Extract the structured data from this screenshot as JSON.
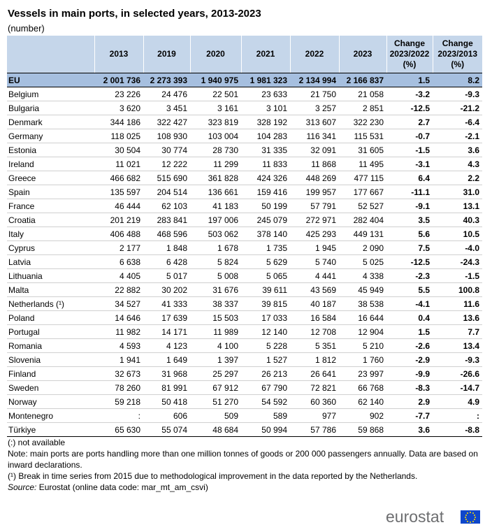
{
  "header": {
    "title": "Vessels in main ports, in selected years, 2013-2023",
    "subtitle": "(number)"
  },
  "table": {
    "columns": [
      "",
      "2013",
      "2019",
      "2020",
      "2021",
      "2022",
      "2023",
      [
        "Change",
        "2023/2022",
        "(%)"
      ],
      [
        "Change",
        "2023/2013",
        "(%)"
      ]
    ],
    "rows": [
      [
        "EU",
        "2 001 736",
        "2 273 393",
        "1 940 975",
        "1 981 323",
        "2 134 994",
        "2 166 837",
        "1.5",
        "8.2"
      ],
      [
        "Belgium",
        "23 226",
        "24 476",
        "22 501",
        "23 633",
        "21 750",
        "21 058",
        "-3.2",
        "-9.3"
      ],
      [
        "Bulgaria",
        "3 620",
        "3 451",
        "3 161",
        "3 101",
        "3 257",
        "2 851",
        "-12.5",
        "-21.2"
      ],
      [
        "Denmark",
        "344 186",
        "322 427",
        "323 819",
        "328 192",
        "313 607",
        "322 230",
        "2.7",
        "-6.4"
      ],
      [
        "Germany",
        "118 025",
        "108 930",
        "103 004",
        "104 283",
        "116 341",
        "115 531",
        "-0.7",
        "-2.1"
      ],
      [
        "Estonia",
        "30 504",
        "30 774",
        "28 730",
        "31 335",
        "32 091",
        "31 605",
        "-1.5",
        "3.6"
      ],
      [
        "Ireland",
        "11 021",
        "12 222",
        "11 299",
        "11 833",
        "11 868",
        "11 495",
        "-3.1",
        "4.3"
      ],
      [
        "Greece",
        "466 682",
        "515 690",
        "361 828",
        "424 326",
        "448 269",
        "477 115",
        "6.4",
        "2.2"
      ],
      [
        "Spain",
        "135 597",
        "204 514",
        "136 661",
        "159 416",
        "199 957",
        "177 667",
        "-11.1",
        "31.0"
      ],
      [
        "France",
        "46 444",
        "62 103",
        "41 183",
        "50 199",
        "57 791",
        "52 527",
        "-9.1",
        "13.1"
      ],
      [
        "Croatia",
        "201 219",
        "283 841",
        "197 006",
        "245 079",
        "272 971",
        "282 404",
        "3.5",
        "40.3"
      ],
      [
        "Italy",
        "406 488",
        "468 596",
        "503 062",
        "378 140",
        "425 293",
        "449 131",
        "5.6",
        "10.5"
      ],
      [
        "Cyprus",
        "2 177",
        "1 848",
        "1 678",
        "1 735",
        "1 945",
        "2 090",
        "7.5",
        "-4.0"
      ],
      [
        "Latvia",
        "6 638",
        "6 428",
        "5 824",
        "5 629",
        "5 740",
        "5 025",
        "-12.5",
        "-24.3"
      ],
      [
        "Lithuania",
        "4 405",
        "5 017",
        "5 008",
        "5 065",
        "4 441",
        "4 338",
        "-2.3",
        "-1.5"
      ],
      [
        "Malta",
        "22 882",
        "30 202",
        "31 676",
        "39 611",
        "43 569",
        "45 949",
        "5.5",
        "100.8"
      ],
      [
        "Netherlands (¹)",
        "34 527",
        "41 333",
        "38 337",
        "39 815",
        "40 187",
        "38 538",
        "-4.1",
        "11.6"
      ],
      [
        "Poland",
        "14 646",
        "17 639",
        "15 503",
        "17 033",
        "16 584",
        "16 644",
        "0.4",
        "13.6"
      ],
      [
        "Portugal",
        "11 982",
        "14 171",
        "11 989",
        "12 140",
        "12 708",
        "12 904",
        "1.5",
        "7.7"
      ],
      [
        "Romania",
        "4 593",
        "4 123",
        "4 100",
        "5 228",
        "5 351",
        "5 210",
        "-2.6",
        "13.4"
      ],
      [
        "Slovenia",
        "1 941",
        "1 649",
        "1 397",
        "1 527",
        "1 812",
        "1 760",
        "-2.9",
        "-9.3"
      ],
      [
        "Finland",
        "32 673",
        "31 968",
        "25 297",
        "26 213",
        "26 641",
        "23 997",
        "-9.9",
        "-26.6"
      ],
      [
        "Sweden",
        "78 260",
        "81 991",
        "67 912",
        "67 790",
        "72 821",
        "66 768",
        "-8.3",
        "-14.7"
      ],
      [
        "Norway",
        "59 218",
        "50 418",
        "51 270",
        "54 592",
        "60 360",
        "62 140",
        "2.9",
        "4.9"
      ],
      [
        "Montenegro",
        ":",
        "606",
        "509",
        "589",
        "977",
        "902",
        "-7.7",
        ":"
      ],
      [
        "Türkiye",
        "65 630",
        "55 074",
        "48 684",
        "50 994",
        "57 786",
        "59 868",
        "3.6",
        "-8.8"
      ]
    ]
  },
  "notes": [
    "(:) not available",
    "Note: main ports are ports handling more than one million tonnes of goods or 200 000 passengers annually. Data are based on inward declarations.",
    "(¹) Break in time series from 2015 due to methodological improvement in the data reported by the Netherlands."
  ],
  "source": {
    "label": "Source:",
    "text": "Eurostat (online data code: mar_mt_am_csvi)"
  },
  "logo": {
    "text": "eurostat"
  }
}
